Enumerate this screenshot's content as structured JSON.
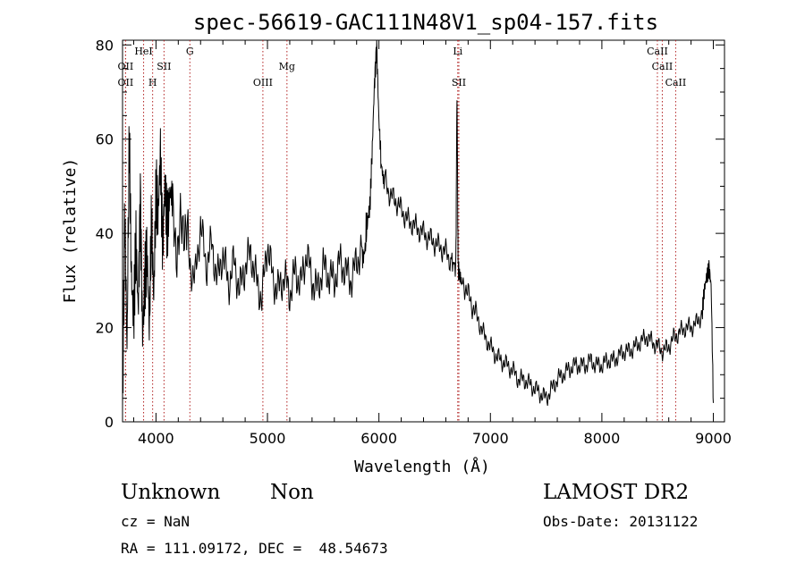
{
  "chart_data": {
    "type": "line",
    "title": "spec-56619-GAC111N48V1_sp04-157.fits",
    "xlabel": "Wavelength (Å)",
    "ylabel": "Flux (relative)",
    "xlim": [
      3700,
      9100
    ],
    "ylim": [
      0,
      81
    ],
    "xticks": [
      4000,
      5000,
      6000,
      7000,
      8000,
      9000
    ],
    "xtick_labels": [
      "4000",
      "5000",
      "6000",
      "7000",
      "8000",
      "9000"
    ],
    "yticks": [
      0,
      20,
      40,
      60,
      80
    ],
    "ytick_labels": [
      "0",
      "20",
      "40",
      "60",
      "80"
    ],
    "grid": false,
    "line_color": "#000000",
    "marker_line_color": "#b22222",
    "series": [
      {
        "x": [
          3700,
          3720,
          3740,
          3760,
          3780,
          3800,
          3820,
          3840,
          3860,
          3880,
          3900,
          3920,
          3940,
          3960,
          3980,
          4000,
          4020,
          4040,
          4060,
          4080,
          4100,
          4120,
          4150,
          4200,
          4250,
          4300,
          4350,
          4400,
          4450,
          4500,
          4550,
          4600,
          4650,
          4700,
          4750,
          4800,
          4850,
          4900,
          4950,
          5000,
          5050,
          5100,
          5150,
          5200,
          5250,
          5300,
          5350,
          5400,
          5450,
          5500,
          5550,
          5600,
          5650,
          5700,
          5750,
          5800,
          5850,
          5880,
          5900,
          5920,
          5940,
          5960,
          5980,
          6000,
          6020,
          6050,
          6100,
          6150,
          6200,
          6250,
          6300,
          6350,
          6400,
          6450,
          6500,
          6550,
          6600,
          6650,
          6690,
          6700,
          6710,
          6720,
          6750,
          6800,
          6850,
          6900,
          6950,
          7000,
          7050,
          7100,
          7150,
          7200,
          7250,
          7300,
          7350,
          7400,
          7450,
          7500,
          7550,
          7600,
          7650,
          7700,
          7750,
          7800,
          7850,
          7900,
          7950,
          8000,
          8050,
          8100,
          8150,
          8200,
          8250,
          8300,
          8350,
          8400,
          8450,
          8500,
          8550,
          8600,
          8650,
          8700,
          8750,
          8800,
          8850,
          8900,
          8920,
          8940,
          8960,
          8980,
          9000
        ],
        "y": [
          2,
          45,
          15,
          60,
          30,
          22,
          38,
          24,
          48,
          18,
          30,
          36,
          20,
          42,
          26,
          50,
          44,
          58,
          38,
          50,
          40,
          46,
          42,
          37,
          44,
          34,
          30,
          42,
          33,
          38,
          30,
          36,
          29,
          34,
          28,
          33,
          36,
          30,
          26,
          38,
          30,
          28,
          31,
          27,
          32,
          29,
          36,
          30,
          28,
          33,
          31,
          30,
          34,
          32,
          30,
          34,
          37,
          39,
          43,
          46,
          58,
          72,
          80,
          64,
          55,
          52,
          48,
          47,
          45,
          43,
          42,
          41,
          40,
          39,
          38,
          37,
          36,
          34,
          33,
          71,
          34,
          30,
          30,
          27,
          24,
          21,
          18,
          16,
          14,
          13,
          12,
          11,
          9,
          9,
          8,
          7,
          6,
          5,
          7,
          9,
          10,
          11,
          12,
          12,
          12,
          13,
          12,
          12,
          13,
          13,
          14,
          15,
          15,
          16,
          17,
          18,
          17,
          16,
          15,
          16,
          18,
          19,
          20,
          20,
          21,
          23,
          28,
          31,
          33,
          29,
          4
        ]
      }
    ],
    "annotations": [
      {
        "label": "OII",
        "x": 3727,
        "level": 2
      },
      {
        "label": "OII",
        "x": 3727,
        "level": 3
      },
      {
        "label": "HeI",
        "x": 3889,
        "level": 1
      },
      {
        "label": "H",
        "x": 3970,
        "level": 3
      },
      {
        "label": "SII",
        "x": 4072,
        "level": 2
      },
      {
        "label": "G",
        "x": 4304,
        "level": 1
      },
      {
        "label": "OIII",
        "x": 4959,
        "level": 3
      },
      {
        "label": "Mg",
        "x": 5175,
        "level": 2
      },
      {
        "label": "Li",
        "x": 6707,
        "level": 1
      },
      {
        "label": "SII",
        "x": 6717,
        "level": 3
      },
      {
        "label": "CaII",
        "x": 8498,
        "level": 1
      },
      {
        "label": "CaII",
        "x": 8542,
        "level": 2
      },
      {
        "label": "CaII",
        "x": 8662,
        "level": 3
      }
    ]
  },
  "footer": {
    "class_label": "Unknown",
    "subclass_label": "Non",
    "survey_label": "LAMOST DR2",
    "cz_text": "cz = NaN",
    "obs_date_text": "Obs-Date: 20131122",
    "radec_text": "RA = 111.09172, DEC =  48.54673"
  }
}
